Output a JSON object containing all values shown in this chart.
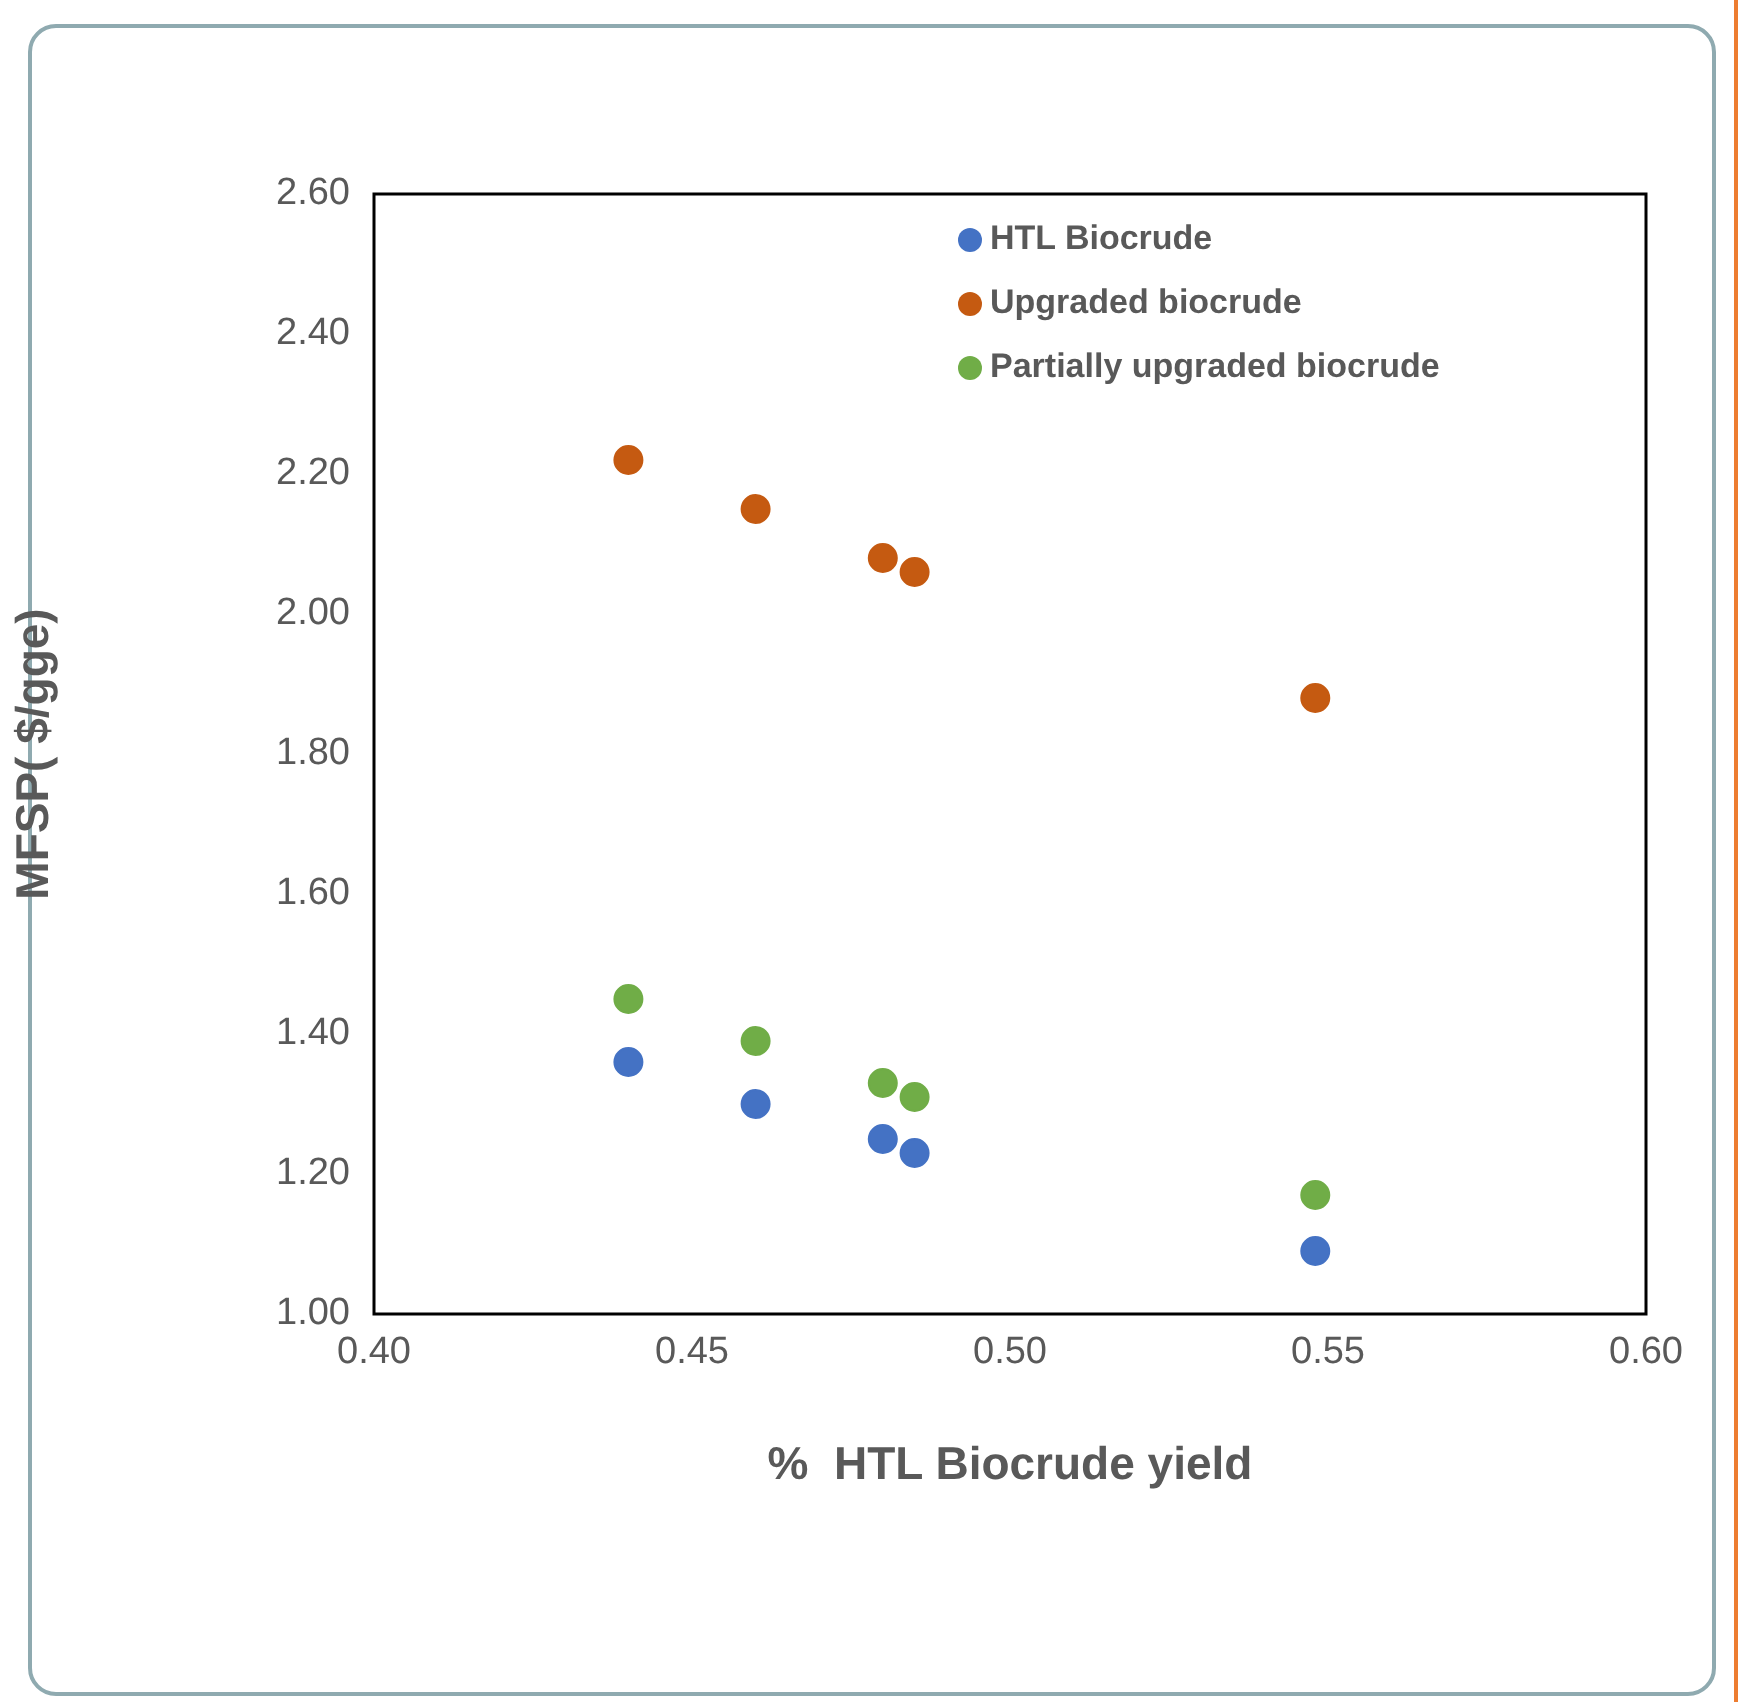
{
  "chart_data": {
    "type": "scatter",
    "xlabel": "%  HTL Biocrude yield",
    "ylabel": "MFSP( $/gge)",
    "x": [
      0.44,
      0.46,
      0.48,
      0.485,
      0.548
    ],
    "series": [
      {
        "name": "HTL Biocrude",
        "color": "#4472c4",
        "values": [
          1.36,
          1.3,
          1.25,
          1.23,
          1.09
        ]
      },
      {
        "name": "Upgraded biocrude",
        "color": "#c55a11",
        "values": [
          2.22,
          2.15,
          2.08,
          2.06,
          1.88
        ]
      },
      {
        "name": "Partially upgraded biocrude",
        "color": "#70ad47",
        "values": [
          1.45,
          1.39,
          1.33,
          1.31,
          1.17
        ]
      }
    ],
    "xlim": [
      0.4,
      0.6
    ],
    "xticks": [
      {
        "value": 0.4,
        "label": "0.40"
      },
      {
        "value": 0.45,
        "label": "0.45"
      },
      {
        "value": 0.5,
        "label": "0.50"
      },
      {
        "value": 0.55,
        "label": "0.55"
      },
      {
        "value": 0.6,
        "label": "0.60"
      }
    ],
    "ylim": [
      1.0,
      2.6
    ],
    "yticks": [
      {
        "value": 1.0,
        "label": "1.00"
      },
      {
        "value": 1.2,
        "label": "1.20"
      },
      {
        "value": 1.4,
        "label": "1.40"
      },
      {
        "value": 1.6,
        "label": "1.60"
      },
      {
        "value": 1.8,
        "label": "1.80"
      },
      {
        "value": 2.0,
        "label": "2.00"
      },
      {
        "value": 2.2,
        "label": "2.20"
      },
      {
        "value": 2.4,
        "label": "2.40"
      },
      {
        "value": 2.6,
        "label": "2.60"
      }
    ],
    "grid": false,
    "legend": "top right",
    "marker": "circle"
  }
}
